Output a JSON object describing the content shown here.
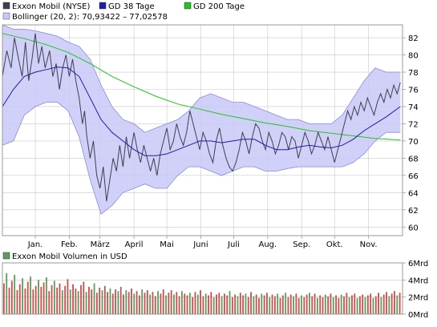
{
  "colors": {
    "price_line": "#3f3f4f",
    "sma38": "#1e1ea8",
    "sma200": "#22c322",
    "band_fill": "#c8c8f8",
    "band_stroke": "#8a8ae0",
    "grid": "#c8c8c8",
    "frame": "#9a9a9a",
    "volume_red": "#c85050",
    "volume_green": "#5aa05a"
  },
  "legend": {
    "price": "Exxon Mobil (NYSE)",
    "sma38": "GD 38 Tage",
    "sma200": "GD 200 Tage",
    "bollinger": "Bollinger (20, 2): 70,93422 – 77,02578"
  },
  "volume_legend": "Exxon Mobil Volumen in USD",
  "chart_data": [
    {
      "type": "line",
      "panel": "price",
      "ylim": [
        59,
        83.5
      ],
      "y_ticks": [
        "60",
        "62",
        "64",
        "66",
        "68",
        "70",
        "72",
        "74",
        "76",
        "78",
        "80",
        "82"
      ],
      "y_tick_values": [
        60,
        62,
        64,
        66,
        68,
        70,
        72,
        74,
        76,
        78,
        80,
        82
      ],
      "x_ticks": [
        "Jan.",
        "Feb.",
        "März",
        "April",
        "Mai",
        "Juni",
        "Juli",
        "Aug.",
        "Sep.",
        "Okt.",
        "Nov."
      ],
      "x_tick_values": [
        10,
        41,
        69,
        100,
        130,
        161,
        191,
        222,
        253,
        283,
        314
      ],
      "xlim": [
        -20,
        345
      ],
      "grid": true,
      "legend_position": "top-left",
      "series": [
        {
          "name": "Exxon Mobil (NYSE)",
          "x": [
            -20,
            -16,
            -12,
            -9,
            -6,
            -2,
            1,
            4,
            7,
            10,
            13,
            16,
            19,
            23,
            26,
            29,
            32,
            35,
            38,
            41,
            44,
            47,
            50,
            53,
            55,
            57,
            60,
            63,
            66,
            69,
            72,
            75,
            78,
            81,
            84,
            87,
            90,
            93,
            96,
            100,
            103,
            106,
            109,
            112,
            115,
            118,
            121,
            124,
            127,
            130,
            133,
            136,
            139,
            142,
            145,
            148,
            151,
            154,
            157,
            160,
            163,
            166,
            169,
            172,
            175,
            178,
            181,
            184,
            187,
            190,
            193,
            196,
            199,
            202,
            205,
            208,
            211,
            214,
            217,
            220,
            223,
            226,
            229,
            232,
            235,
            238,
            241,
            244,
            247,
            250,
            253,
            256,
            259,
            262,
            265,
            268,
            271,
            274,
            277,
            280,
            283,
            286,
            289,
            292,
            295,
            298,
            301,
            304,
            307,
            310,
            313,
            316,
            319,
            322,
            325,
            328,
            331,
            334,
            337,
            340,
            343
          ],
          "values": [
            77.5,
            80.5,
            78.5,
            82.0,
            80.0,
            77.5,
            81.5,
            77.0,
            79.5,
            82.5,
            79.0,
            81.0,
            78.5,
            80.5,
            77.5,
            79.0,
            76.0,
            78.5,
            80.0,
            77.5,
            79.5,
            77.0,
            75.0,
            72.0,
            73.5,
            70.5,
            68.0,
            70.0,
            66.0,
            64.5,
            67.0,
            63.0,
            65.5,
            68.0,
            66.5,
            69.5,
            67.0,
            70.5,
            68.0,
            71.0,
            69.0,
            67.5,
            69.5,
            68.0,
            66.5,
            68.0,
            66.0,
            68.5,
            70.0,
            71.5,
            69.0,
            70.0,
            72.0,
            70.5,
            69.5,
            71.0,
            73.5,
            72.0,
            70.5,
            69.0,
            71.0,
            70.0,
            68.5,
            67.5,
            70.0,
            71.5,
            69.5,
            68.0,
            67.0,
            66.5,
            67.5,
            69.0,
            71.0,
            70.0,
            68.5,
            70.5,
            72.0,
            71.5,
            70.0,
            69.0,
            71.0,
            70.0,
            68.5,
            69.5,
            71.0,
            70.5,
            69.0,
            70.5,
            70.0,
            68.0,
            69.5,
            71.0,
            70.0,
            68.5,
            69.5,
            71.0,
            70.0,
            69.0,
            70.5,
            69.0,
            67.5,
            69.0,
            70.5,
            72.0,
            73.5,
            72.5,
            74.0,
            73.0,
            74.5,
            73.5,
            75.0,
            74.0,
            73.0,
            74.5,
            75.5,
            74.5,
            76.0,
            75.0,
            76.5,
            75.5,
            76.8
          ]
        },
        {
          "name": "GD 38 Tage",
          "x": [
            -20,
            -10,
            0,
            10,
            20,
            30,
            40,
            50,
            60,
            70,
            80,
            90,
            100,
            110,
            120,
            130,
            140,
            150,
            160,
            170,
            180,
            190,
            200,
            210,
            220,
            230,
            240,
            250,
            260,
            270,
            280,
            290,
            300,
            310,
            320,
            330,
            343
          ],
          "values": [
            74.0,
            76.0,
            77.5,
            78.0,
            78.3,
            78.6,
            78.5,
            77.5,
            75.0,
            72.5,
            71.0,
            70.0,
            69.0,
            68.3,
            68.3,
            68.5,
            69.0,
            69.5,
            70.0,
            70.0,
            69.8,
            70.0,
            70.2,
            70.2,
            69.5,
            69.0,
            69.0,
            69.3,
            69.5,
            69.3,
            69.2,
            69.5,
            70.2,
            71.2,
            72.0,
            72.8,
            74.0
          ]
        },
        {
          "name": "GD 200 Tage",
          "x": [
            -20,
            0,
            20,
            40,
            60,
            80,
            100,
            120,
            140,
            160,
            180,
            200,
            220,
            240,
            260,
            280,
            300,
            320,
            343
          ],
          "values": [
            82.5,
            81.9,
            81.2,
            80.3,
            79.0,
            77.5,
            76.3,
            75.2,
            74.3,
            73.7,
            73.1,
            72.6,
            72.1,
            71.7,
            71.2,
            70.9,
            70.6,
            70.3,
            70.1
          ]
        },
        {
          "name": "Bollinger (20, 2): 70,93422 – 77,02578",
          "x": [
            -20,
            -10,
            0,
            10,
            20,
            30,
            40,
            50,
            60,
            70,
            80,
            90,
            100,
            110,
            120,
            130,
            140,
            150,
            160,
            170,
            180,
            190,
            200,
            210,
            220,
            230,
            240,
            250,
            260,
            270,
            280,
            290,
            300,
            310,
            320,
            330,
            343
          ],
          "upper": [
            83.5,
            83.0,
            83.0,
            82.8,
            82.5,
            82.2,
            81.5,
            81.0,
            79.5,
            76.5,
            74.0,
            72.5,
            72.0,
            71.0,
            71.5,
            72.0,
            72.5,
            73.5,
            75.0,
            75.5,
            75.0,
            74.5,
            74.5,
            74.0,
            73.5,
            73.0,
            72.5,
            72.5,
            72.0,
            72.0,
            72.0,
            73.0,
            75.0,
            77.0,
            78.5,
            78.0,
            78.0
          ],
          "lower": [
            69.5,
            70.0,
            73.0,
            74.0,
            74.5,
            74.5,
            73.5,
            70.5,
            65.5,
            61.5,
            62.5,
            64.0,
            64.5,
            65.0,
            64.5,
            64.5,
            66.0,
            67.0,
            67.0,
            66.5,
            66.0,
            66.5,
            67.0,
            67.0,
            66.5,
            66.5,
            66.8,
            67.0,
            67.0,
            67.0,
            67.0,
            67.0,
            67.5,
            68.5,
            70.0,
            71.0,
            71.0
          ]
        }
      ]
    },
    {
      "type": "bar",
      "panel": "volume",
      "ylim": [
        0,
        6
      ],
      "y_ticks": [
        "0Mrd",
        "2Mrd",
        "4Mrd",
        "6Mrd"
      ],
      "y_tick_values": [
        0,
        2,
        4,
        6
      ],
      "unit": "Mrd USD",
      "values": [
        3.6,
        4.8,
        3.1,
        3.9,
        4.6,
        2.8,
        3.5,
        4.2,
        3.0,
        3.8,
        4.4,
        2.9,
        3.3,
        4.0,
        3.2,
        3.7,
        4.3,
        2.7,
        3.4,
        3.9,
        3.1,
        3.6,
        2.8,
        3.3,
        4.1,
        2.9,
        3.5,
        3.0,
        2.7,
        3.4,
        3.8,
        2.6,
        3.2,
        2.9,
        3.6,
        2.5,
        3.1,
        2.8,
        3.3,
        2.6,
        3.0,
        2.4,
        2.9,
        2.7,
        3.2,
        2.3,
        2.8,
        2.6,
        3.0,
        2.4,
        2.7,
        2.2,
        2.9,
        2.5,
        2.8,
        2.3,
        2.6,
        2.1,
        2.7,
        2.4,
        2.9,
        2.2,
        2.5,
        2.8,
        2.3,
        2.6,
        2.1,
        2.7,
        2.4,
        2.2,
        2.5,
        2.0,
        2.6,
        2.3,
        2.8,
        2.1,
        2.4,
        2.2,
        2.6,
        2.0,
        2.3,
        2.5,
        2.1,
        2.4,
        2.2,
        2.7,
        2.0,
        2.3,
        2.1,
        2.5,
        2.2,
        2.4,
        2.0,
        2.6,
        2.1,
        2.3,
        1.9,
        2.4,
        2.2,
        2.5,
        2.0,
        2.3,
        2.1,
        2.4,
        1.9,
        2.2,
        2.5,
        2.0,
        2.3,
        2.1,
        2.4,
        1.9,
        2.2,
        2.0,
        2.3,
        2.5,
        2.1,
        2.4,
        1.9,
        2.2,
        2.0,
        2.3,
        2.1,
        2.4,
        2.0,
        2.2,
        1.9,
        2.3,
        2.1,
        2.5,
        2.0,
        2.2,
        2.4,
        1.9,
        2.1,
        2.3,
        2.0,
        2.2,
        2.4,
        1.9,
        2.1,
        2.5,
        2.0,
        2.3,
        2.6,
        2.1,
        2.4,
        2.7,
        2.2,
        2.5
      ]
    }
  ]
}
